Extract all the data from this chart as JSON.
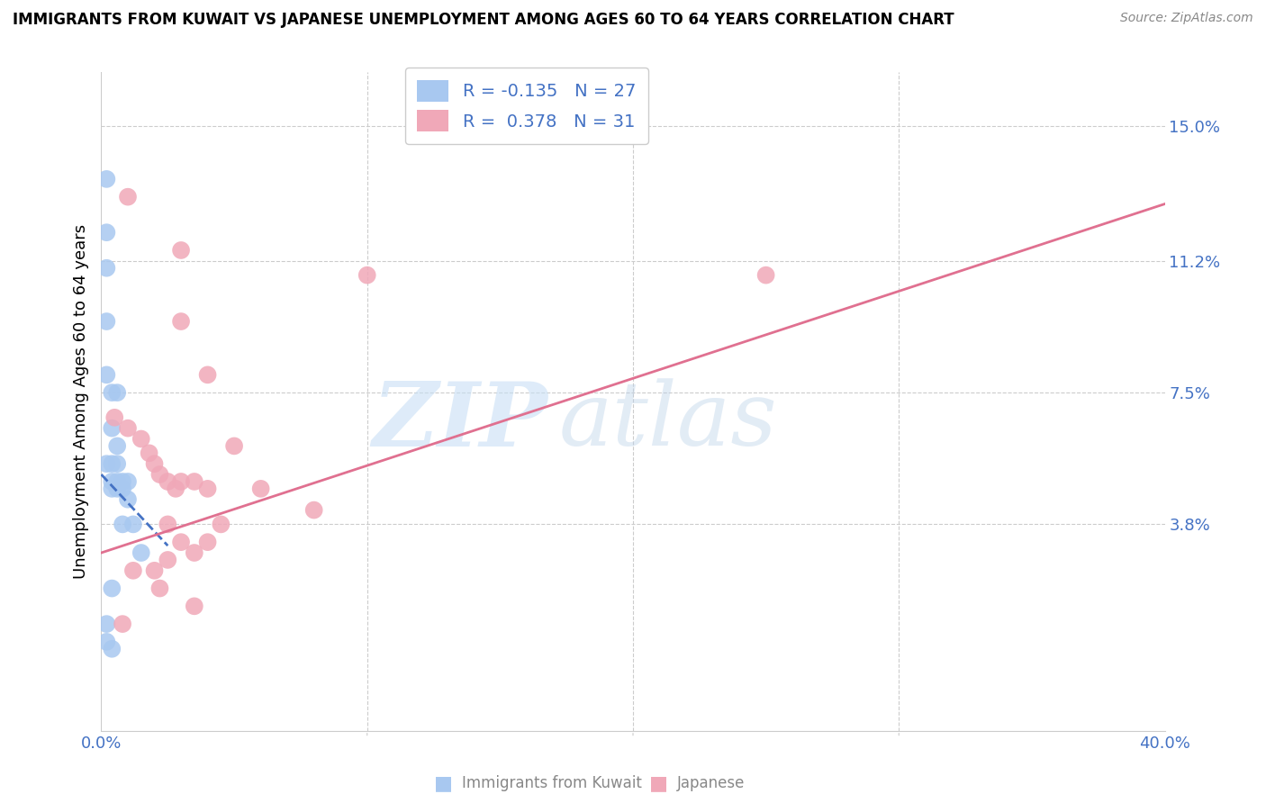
{
  "title": "IMMIGRANTS FROM KUWAIT VS JAPANESE UNEMPLOYMENT AMONG AGES 60 TO 64 YEARS CORRELATION CHART",
  "source": "Source: ZipAtlas.com",
  "ylabel": "Unemployment Among Ages 60 to 64 years",
  "xlim": [
    0.0,
    0.4
  ],
  "ylim": [
    -0.02,
    0.165
  ],
  "yticks": [
    0.038,
    0.075,
    0.112,
    0.15
  ],
  "ytick_labels": [
    "3.8%",
    "7.5%",
    "11.2%",
    "15.0%"
  ],
  "xtick_left_label": "0.0%",
  "xtick_right_label": "40.0%",
  "legend_r1": "R = -0.135",
  "legend_n1": "N = 27",
  "legend_r2": "R =  0.378",
  "legend_n2": "N = 31",
  "color_blue": "#a8c8f0",
  "color_pink": "#f0a8b8",
  "color_blue_line": "#4472c4",
  "color_pink_line": "#e07090",
  "watermark_zip": "ZIP",
  "watermark_atlas": "atlas",
  "blue_points_x": [
    0.002,
    0.002,
    0.002,
    0.002,
    0.002,
    0.002,
    0.002,
    0.004,
    0.004,
    0.004,
    0.004,
    0.004,
    0.004,
    0.006,
    0.006,
    0.006,
    0.006,
    0.006,
    0.008,
    0.008,
    0.008,
    0.01,
    0.01,
    0.012,
    0.015,
    0.002,
    0.004
  ],
  "blue_points_y": [
    0.135,
    0.12,
    0.11,
    0.095,
    0.08,
    0.055,
    0.01,
    0.075,
    0.065,
    0.055,
    0.05,
    0.048,
    0.02,
    0.075,
    0.06,
    0.055,
    0.05,
    0.048,
    0.05,
    0.048,
    0.038,
    0.05,
    0.045,
    0.038,
    0.03,
    0.005,
    0.003
  ],
  "pink_points_x": [
    0.01,
    0.03,
    0.03,
    0.04,
    0.005,
    0.01,
    0.015,
    0.018,
    0.02,
    0.022,
    0.025,
    0.028,
    0.03,
    0.035,
    0.04,
    0.05,
    0.06,
    0.08,
    0.1,
    0.025,
    0.03,
    0.035,
    0.012,
    0.02,
    0.022,
    0.25,
    0.035,
    0.04,
    0.045,
    0.008,
    0.025
  ],
  "pink_points_y": [
    0.13,
    0.115,
    0.095,
    0.08,
    0.068,
    0.065,
    0.062,
    0.058,
    0.055,
    0.052,
    0.05,
    0.048,
    0.05,
    0.05,
    0.048,
    0.06,
    0.048,
    0.042,
    0.108,
    0.038,
    0.033,
    0.03,
    0.025,
    0.025,
    0.02,
    0.108,
    0.015,
    0.033,
    0.038,
    0.01,
    0.028
  ],
  "blue_line_x": [
    0.0,
    0.025
  ],
  "blue_line_y_start": 0.052,
  "blue_line_slope": -0.8,
  "pink_line_x": [
    0.0,
    0.4
  ],
  "pink_line_y_start": 0.03,
  "pink_line_y_end": 0.128
}
